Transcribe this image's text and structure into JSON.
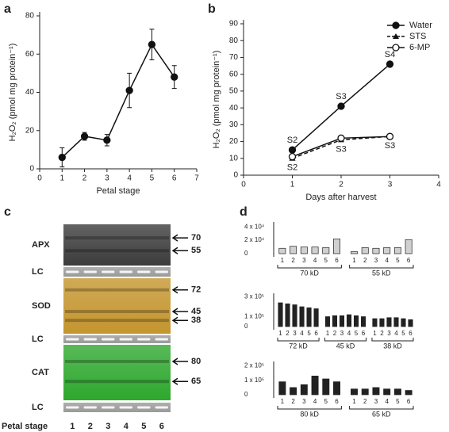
{
  "chart_data": [
    {
      "type": "errorline",
      "panel": "a",
      "xlabel": "Petal stage",
      "ylabel": "H₂O₂ (pmol mg protein⁻¹)",
      "x": [
        1,
        2,
        3,
        4,
        5,
        6
      ],
      "values": [
        6,
        17,
        15,
        41,
        65,
        48
      ],
      "errors": [
        5,
        2,
        3,
        9,
        8,
        6
      ],
      "color": "#111111",
      "xlim": [
        0,
        7
      ],
      "xticks": [
        0,
        1,
        2,
        3,
        4,
        5,
        6,
        7
      ],
      "ylim": [
        0,
        80
      ],
      "yticks": [
        0,
        20,
        40,
        60,
        80
      ]
    },
    {
      "type": "line",
      "panel": "b",
      "xlabel": "Days after harvest",
      "ylabel": "H₂O₂ (pmol mg protein⁻¹)",
      "x": [
        1,
        2,
        3
      ],
      "legend": "top-right",
      "series": [
        {
          "name": "Water",
          "color": "#111111",
          "marker": "circle",
          "dashed": false,
          "labels": [
            "S2",
            "S3",
            "S4"
          ],
          "label_side": "above",
          "values": [
            15,
            41,
            66
          ]
        },
        {
          "name": "STS",
          "color": "#111111",
          "marker": "triangle",
          "dashed": true,
          "labels": [
            "S2",
            "S3",
            "S3"
          ],
          "label_side": "below",
          "values": [
            10,
            21,
            23
          ]
        },
        {
          "name": "6-MP",
          "color": "#111111",
          "marker": "open-circle",
          "dashed": false,
          "values": [
            11,
            22,
            23
          ]
        }
      ],
      "xlim": [
        0,
        4
      ],
      "xticks": [
        0,
        1,
        2,
        3,
        4
      ],
      "ylim": [
        0,
        90
      ],
      "yticks": [
        0,
        10,
        20,
        30,
        40,
        50,
        60,
        70,
        80,
        90
      ]
    },
    {
      "type": "groupbar",
      "panel": "d",
      "color": "#d0d0d0",
      "ylim": [
        0,
        45000
      ],
      "yticks": [
        {
          "value": 0,
          "label": "0"
        },
        {
          "value": 20000,
          "label": "2 x 10⁴"
        },
        {
          "value": 40000,
          "label": "4 x 10⁴"
        }
      ],
      "groups": [
        {
          "label": "70 kD",
          "categories": [
            "1",
            "2",
            "3",
            "4",
            "5",
            "6"
          ],
          "values": [
            8000,
            11000,
            10000,
            10000,
            9000,
            22000
          ]
        },
        {
          "label": "55 kD",
          "categories": [
            "1",
            "2",
            "3",
            "4",
            "5",
            "6"
          ],
          "values": [
            3000,
            9000,
            8000,
            9000,
            9000,
            21000
          ]
        }
      ]
    },
    {
      "type": "groupbar",
      "color": "#222222",
      "ylim": [
        0,
        320000
      ],
      "yticks": [
        {
          "value": 0,
          "label": "0"
        },
        {
          "value": 100000,
          "label": "1 x 10⁵"
        },
        {
          "value": 300000,
          "label": "3 x 10⁵"
        }
      ],
      "groups": [
        {
          "label": "72 kD",
          "categories": [
            "1",
            "2",
            "3",
            "4",
            "5",
            "6"
          ],
          "values": [
            240000,
            230000,
            220000,
            200000,
            190000,
            180000
          ]
        },
        {
          "label": "45 kD",
          "categories": [
            "1",
            "2",
            "3",
            "4",
            "5",
            "6"
          ],
          "values": [
            100000,
            110000,
            110000,
            120000,
            110000,
            100000
          ]
        },
        {
          "label": "38 kD",
          "categories": [
            "1",
            "2",
            "3",
            "4",
            "5",
            "6"
          ],
          "values": [
            80000,
            80000,
            90000,
            90000,
            80000,
            70000
          ]
        }
      ]
    },
    {
      "type": "groupbar",
      "color": "#222222",
      "ylim": [
        0,
        220000
      ],
      "yticks": [
        {
          "value": 0,
          "label": "0"
        },
        {
          "value": 100000,
          "label": "1 x 10⁵"
        },
        {
          "value": 200000,
          "label": "2 x 10⁵"
        }
      ],
      "groups": [
        {
          "label": "80 kD",
          "categories": [
            "1",
            "2",
            "3",
            "4",
            "5",
            "6"
          ],
          "values": [
            90000,
            50000,
            70000,
            130000,
            110000,
            90000
          ]
        },
        {
          "label": "65 kD",
          "categories": [
            "1",
            "2",
            "3",
            "4",
            "5",
            "6"
          ],
          "values": [
            40000,
            40000,
            50000,
            40000,
            40000,
            30000
          ]
        }
      ]
    }
  ],
  "gel": {
    "panel": "c",
    "lane_title": "Petal stage",
    "lanes": [
      "1",
      "2",
      "3",
      "4",
      "5",
      "6"
    ],
    "blots": [
      {
        "name": "APX",
        "color": "#3c3c3c",
        "markers": [
          70,
          55
        ]
      },
      {
        "name": "LC",
        "color": "#9a9a9a"
      },
      {
        "name": "SOD",
        "color": "#c4952e",
        "markers": [
          72,
          45,
          38
        ]
      },
      {
        "name": "LC",
        "color": "#9a9a9a"
      },
      {
        "name": "CAT",
        "color": "#2ea82e",
        "markers": [
          80,
          65
        ]
      },
      {
        "name": "LC",
        "color": "#9a9a9a"
      }
    ]
  }
}
